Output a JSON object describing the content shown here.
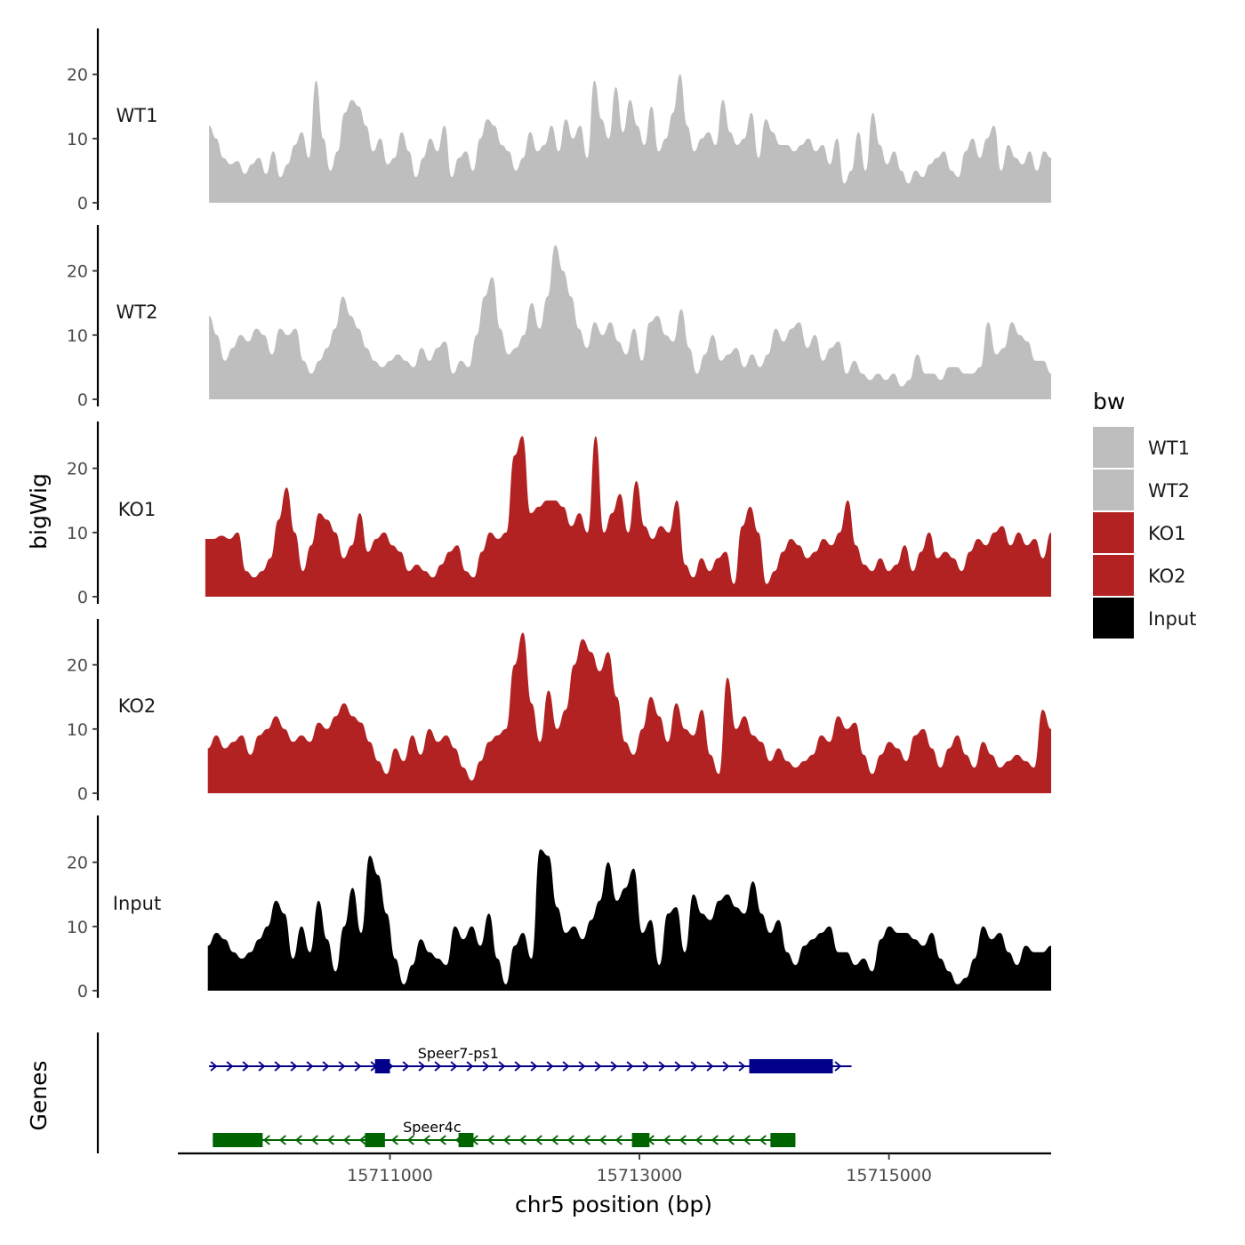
{
  "chart_data": {
    "type": "area",
    "x_label": "chr5 position (bp)",
    "y_label": "bigWig",
    "genes_panel_label": "Genes",
    "legend": {
      "title": "bw",
      "entries": [
        {
          "name": "WT1",
          "color": "#bebebe"
        },
        {
          "name": "WT2",
          "color": "#bebebe"
        },
        {
          "name": "KO1",
          "color": "#b22222"
        },
        {
          "name": "KO2",
          "color": "#b22222"
        },
        {
          "name": "Input",
          "color": "#000000"
        }
      ]
    },
    "x_range": [
      15709300,
      15716300
    ],
    "x_ticks": [
      {
        "value": 15711000,
        "label": "15711000"
      },
      {
        "value": 15713000,
        "label": "15713000"
      },
      {
        "value": 15715000,
        "label": "15715000"
      }
    ],
    "y_range": [
      0,
      28
    ],
    "y_ticks": [
      {
        "value": 0,
        "label": "0"
      },
      {
        "value": 10,
        "label": "10"
      },
      {
        "value": 20,
        "label": "20"
      }
    ],
    "tracks": [
      {
        "name": "WT1",
        "color": "#bebebe",
        "x_start": 15709550,
        "x_end": 15716300,
        "values": [
          12,
          10,
          7,
          6,
          6.5,
          4.5,
          6,
          7,
          4.5,
          8,
          4,
          6,
          9,
          11,
          7,
          19,
          10,
          5,
          8,
          14,
          16,
          15,
          12,
          8,
          10,
          6,
          7,
          11,
          8,
          4,
          7,
          10,
          8,
          12,
          4,
          7,
          8,
          5,
          10,
          13,
          12,
          9,
          8,
          5,
          7,
          11,
          8,
          9,
          12,
          8,
          13,
          10,
          12,
          7,
          19,
          13,
          10,
          18,
          11,
          16,
          12,
          9,
          15,
          8,
          10,
          14,
          20,
          12,
          8,
          10,
          11,
          9,
          16,
          11,
          9,
          10,
          14,
          7,
          13,
          11,
          9,
          9,
          8,
          9,
          10,
          8,
          9,
          6,
          10,
          3,
          5,
          11,
          5,
          14,
          9,
          6,
          8,
          5,
          3,
          5,
          4,
          6,
          7,
          8,
          5,
          4,
          8,
          10,
          7,
          10,
          12,
          5,
          9,
          7,
          6,
          8,
          5,
          8,
          7
        ],
        "note": ""
      },
      {
        "name": "WT2",
        "color": "#bebebe",
        "x_start": 15709550,
        "x_end": 15716300,
        "values": [
          13,
          10,
          6,
          8,
          10,
          9,
          11,
          10,
          7,
          11,
          10,
          11,
          6,
          4,
          6,
          8,
          11,
          16,
          13,
          11,
          8,
          6,
          5,
          6,
          7,
          6,
          5,
          8,
          6,
          8,
          9,
          4,
          6,
          5,
          10,
          16,
          19,
          11,
          7,
          8,
          10,
          15,
          11,
          16,
          24,
          20,
          16,
          11,
          8,
          12,
          10,
          12,
          9,
          7,
          11,
          6,
          12,
          13,
          10,
          9,
          14,
          8,
          4,
          7,
          10,
          6,
          7,
          8,
          5,
          7,
          5,
          7,
          11,
          9,
          11,
          12,
          8,
          10,
          6,
          8,
          9,
          4,
          6,
          4,
          3,
          4,
          3,
          4,
          2,
          3,
          7,
          4,
          4,
          3,
          5,
          5,
          4,
          4,
          5,
          12,
          7,
          8,
          12,
          10,
          9,
          6,
          6,
          4
        ],
        "note": ""
      },
      {
        "name": "KO1",
        "color": "#b22222",
        "x_start": 15709520,
        "x_end": 15716300,
        "values": [
          9,
          9,
          9.5,
          9,
          10,
          4,
          3,
          4,
          6,
          12,
          17,
          10,
          4,
          8,
          13,
          12,
          10,
          6,
          8,
          13,
          7,
          9,
          10,
          8,
          7,
          4,
          5,
          4,
          3,
          5,
          7,
          8,
          4,
          3,
          7,
          10,
          9,
          10,
          22,
          25,
          13,
          14,
          15,
          15,
          14,
          11,
          13,
          10,
          25,
          10,
          13,
          16,
          10,
          18,
          11,
          9,
          11,
          10,
          15,
          5,
          3,
          6,
          4,
          6,
          7,
          2,
          11,
          14,
          10,
          2,
          4,
          7,
          9,
          8,
          6,
          7,
          9,
          8,
          10,
          15,
          8,
          5,
          4,
          6,
          4,
          5,
          8,
          4,
          7,
          10,
          6,
          7,
          6,
          4,
          7,
          9,
          8,
          10,
          11,
          8,
          10,
          8,
          9,
          6,
          10
        ],
        "note": ""
      },
      {
        "name": "KO2",
        "color": "#b22222",
        "x_start": 15709540,
        "x_end": 15716300,
        "values": [
          7,
          9,
          7,
          8,
          9,
          6,
          9,
          10,
          12,
          10,
          8,
          9,
          8,
          11,
          10,
          12,
          14,
          12,
          11,
          8,
          5,
          3,
          7,
          5,
          9,
          6,
          10,
          8,
          9,
          7,
          4,
          2,
          5,
          8,
          9,
          10,
          20,
          25,
          14,
          8,
          16,
          10,
          13,
          20,
          24,
          22,
          19,
          22,
          15,
          8,
          6,
          10,
          15,
          12,
          8,
          14,
          10,
          9,
          13,
          6,
          3,
          18,
          10,
          12,
          9,
          8,
          5,
          7,
          5,
          4,
          5,
          6,
          9,
          8,
          12,
          10,
          11,
          6,
          3,
          6,
          8,
          7,
          5,
          9,
          10,
          7,
          4,
          7,
          9,
          6,
          4,
          8,
          6,
          4,
          5,
          6,
          5,
          4,
          13,
          10
        ],
        "note": ""
      },
      {
        "name": "Input",
        "color": "#000000",
        "x_start": 15709540,
        "x_end": 15716300,
        "values": [
          7,
          9,
          8,
          6,
          5,
          6,
          8,
          10,
          14,
          12,
          5,
          10,
          6,
          14,
          8,
          3,
          10,
          16,
          9,
          21,
          18,
          12,
          5,
          1,
          4,
          8,
          6,
          5,
          4,
          10,
          8,
          10,
          7,
          12,
          5,
          1,
          7,
          9,
          5,
          22,
          21,
          13,
          9,
          10,
          8,
          11,
          14,
          20,
          14,
          16,
          19,
          9,
          11,
          4,
          12,
          13,
          6,
          15,
          12,
          11,
          14,
          15,
          13,
          12,
          17,
          12,
          9,
          11,
          6,
          4,
          7,
          8,
          9,
          10,
          6,
          6,
          4,
          5,
          3,
          8,
          10,
          9,
          9,
          8,
          7,
          9,
          5,
          3,
          1,
          2,
          5,
          10,
          8,
          9,
          6,
          4,
          7,
          6,
          6,
          7
        ]
      }
    ],
    "genes": [
      {
        "name": "Speer7-ps1",
        "strand": "+",
        "color": "#00008b",
        "start": 15709550,
        "end": 15714700,
        "exons": [
          [
            15710880,
            15711000
          ],
          [
            15713880,
            15714550
          ]
        ]
      },
      {
        "name": "Speer4c",
        "strand": "-",
        "color": "#006400",
        "start": 15709580,
        "end": 15714250,
        "exons": [
          [
            15709580,
            15709980
          ],
          [
            15710800,
            15710960
          ],
          [
            15711550,
            15711670
          ],
          [
            15712940,
            15713080
          ],
          [
            15714050,
            15714250
          ]
        ]
      }
    ]
  }
}
